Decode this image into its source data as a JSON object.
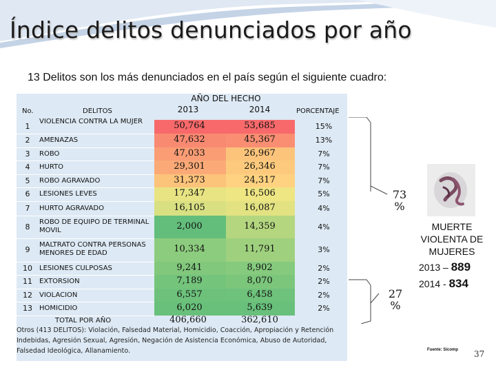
{
  "title": "Índice delitos denunciados por año",
  "subtitle": "13 Delitos son los más denunciados en el país según el siguiente cuadro:",
  "table": {
    "headers": {
      "no": "No.",
      "delitos": "DELITOS",
      "anio_hecho": "AÑO DEL HECHO",
      "y2013": "2013",
      "y2014": "2014",
      "porcentaje": "PORCENTAJE"
    },
    "rows": [
      {
        "no": "1",
        "delito": "VIOLENCIA CONTRA LA MUJER",
        "v2013": "50,764",
        "v2014": "53,685",
        "pct": "15%"
      },
      {
        "no": "2",
        "delito": "AMENAZAS",
        "v2013": "47,632",
        "v2014": "45,367",
        "pct": "13%"
      },
      {
        "no": "3",
        "delito": "ROBO",
        "v2013": "47,033",
        "v2014": "26,967",
        "pct": "7%"
      },
      {
        "no": "4",
        "delito": "HURTO",
        "v2013": "29,301",
        "v2014": "26,346",
        "pct": "7%"
      },
      {
        "no": "5",
        "delito": "ROBO AGRAVADO",
        "v2013": "31,373",
        "v2014": "24,317",
        "pct": "7%"
      },
      {
        "no": "6",
        "delito": "LESIONES LEVES",
        "v2013": "17,347",
        "v2014": "16,506",
        "pct": "5%"
      },
      {
        "no": "7",
        "delito": "HURTO AGRAVADO",
        "v2013": "16,105",
        "v2014": "16,087",
        "pct": "4%"
      },
      {
        "no": "8",
        "delito": "ROBO DE EQUIPO DE TERMINAL MOVIL",
        "v2013": "2,000",
        "v2014": "14,359",
        "pct": "4%"
      },
      {
        "no": "9",
        "delito": "MALTRATO CONTRA PERSONAS MENORES DE EDAD",
        "v2013": "10,334",
        "v2014": "11,791",
        "pct": "3%"
      },
      {
        "no": "10",
        "delito": "LESIONES CULPOSAS",
        "v2013": "9,241",
        "v2014": "8,902",
        "pct": "2%"
      },
      {
        "no": "11",
        "delito": "EXTORSION",
        "v2013": "7,189",
        "v2014": "8,070",
        "pct": "2%"
      },
      {
        "no": "12",
        "delito": "VIOLACION",
        "v2013": "6,557",
        "v2014": "6,458",
        "pct": "2%"
      },
      {
        "no": "13",
        "delito": "HOMICIDIO",
        "v2013": "6,020",
        "v2014": "5,639",
        "pct": "2%"
      }
    ],
    "total": {
      "label": "TOTAL POR AÑO",
      "v2013": "406,660",
      "v2014": "362,610"
    },
    "footnote": "Otros (413 DELITOS): Violación, Falsedad Material, Homicidio, Coacción, Apropiación y Retención Indebidas, Agresión Sexual, Agresión, Negación de Asistencia Económica, Abuso de Autoridad, Falsedad Ideológica, Allanamiento."
  },
  "side": {
    "pct_top": "73 %",
    "pct_bottom": "27 %",
    "heading": "MUERTE VIOLENTA DE MUJERES",
    "line1_year": "2013 – ",
    "line1_num": "889",
    "line2_year": "2014 - ",
    "line2_num": "834"
  },
  "source": "Fuente: Sicomp",
  "page_number": "37",
  "colors": {
    "table_bg": "#dde9f4",
    "heat_red": "#f8696b",
    "heat_orange": "#fbaa77",
    "heat_yellow": "#ffeb84",
    "heat_green": "#63be7b"
  }
}
